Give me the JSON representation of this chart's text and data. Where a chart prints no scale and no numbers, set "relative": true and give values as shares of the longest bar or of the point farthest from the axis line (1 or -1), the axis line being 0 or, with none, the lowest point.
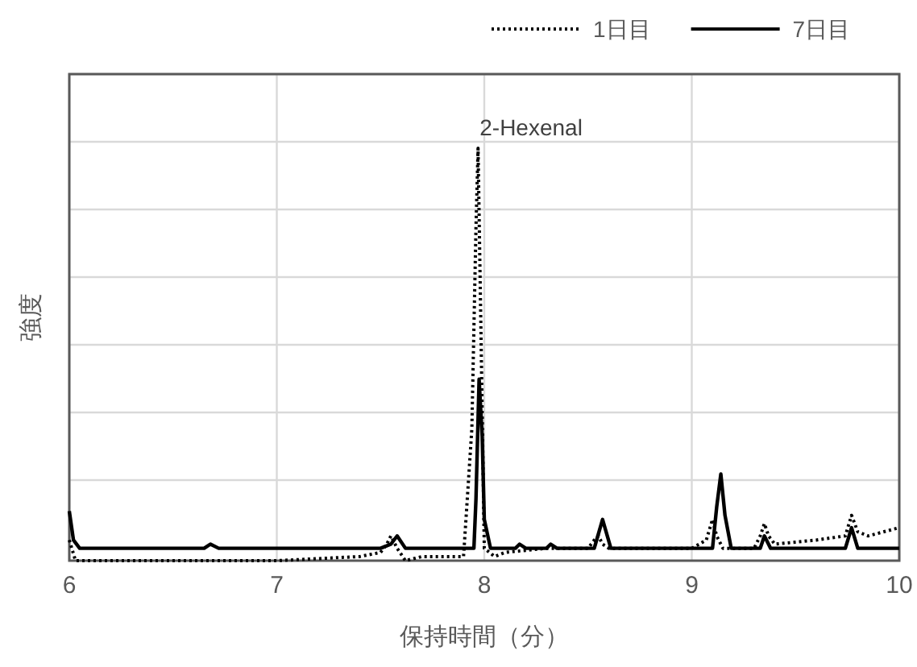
{
  "chart_data": {
    "type": "line",
    "relative": true,
    "xlabel": "保持時間（分）",
    "ylabel": "強度",
    "xlim": [
      6,
      10
    ],
    "xticks": [
      6,
      7,
      8,
      9,
      10
    ],
    "grid": true,
    "legend": "top right",
    "annotations": [
      {
        "text": "2-Hexenal",
        "x": 7.97,
        "y": 1
      }
    ],
    "series": [
      {
        "name": "1日目",
        "color": "#000000",
        "line_style": "dotted",
        "x": [
          6,
          6.03,
          6.1,
          6.5,
          7,
          7.4,
          7.5,
          7.53,
          7.55,
          7.58,
          7.62,
          7.7,
          7.9,
          7.94,
          7.96,
          7.97,
          7.985,
          8.0,
          8.05,
          8.1,
          8.3,
          8.5,
          8.53,
          8.55,
          8.57,
          8.6,
          9.0,
          9.07,
          9.1,
          9.12,
          9.15,
          9.3,
          9.33,
          9.35,
          9.37,
          9.4,
          9.6,
          9.74,
          9.77,
          9.8,
          9.85,
          10
        ],
        "values": [
          0.05,
          0.0,
          0.0,
          0.0,
          0.0,
          0.01,
          0.02,
          0.04,
          0.06,
          0.03,
          0.0,
          0.01,
          0.01,
          0.32,
          0.81,
          1.0,
          0.52,
          0.03,
          0.01,
          0.02,
          0.03,
          0.03,
          0.05,
          0.06,
          0.04,
          0.03,
          0.03,
          0.05,
          0.1,
          0.06,
          0.03,
          0.03,
          0.06,
          0.09,
          0.06,
          0.04,
          0.05,
          0.06,
          0.11,
          0.07,
          0.06,
          0.08
        ]
      },
      {
        "name": "7日目",
        "color": "#000000",
        "line_style": "solid",
        "x": [
          6,
          6.02,
          6.05,
          6.5,
          6.65,
          6.68,
          6.72,
          7,
          7.5,
          7.55,
          7.58,
          7.62,
          7.66,
          7.95,
          7.96,
          7.975,
          7.99,
          8.0,
          8.03,
          8.15,
          8.17,
          8.2,
          8.3,
          8.32,
          8.35,
          8.53,
          8.57,
          8.61,
          9.1,
          9.12,
          9.14,
          9.16,
          9.19,
          9.33,
          9.35,
          9.38,
          9.74,
          9.77,
          9.8,
          10
        ],
        "values": [
          0.12,
          0.05,
          0.03,
          0.03,
          0.03,
          0.04,
          0.03,
          0.03,
          0.03,
          0.04,
          0.06,
          0.03,
          0.03,
          0.03,
          0.15,
          0.44,
          0.3,
          0.1,
          0.03,
          0.03,
          0.04,
          0.03,
          0.03,
          0.04,
          0.03,
          0.03,
          0.1,
          0.03,
          0.03,
          0.13,
          0.21,
          0.11,
          0.03,
          0.03,
          0.06,
          0.03,
          0.03,
          0.08,
          0.03,
          0.03
        ]
      }
    ]
  }
}
